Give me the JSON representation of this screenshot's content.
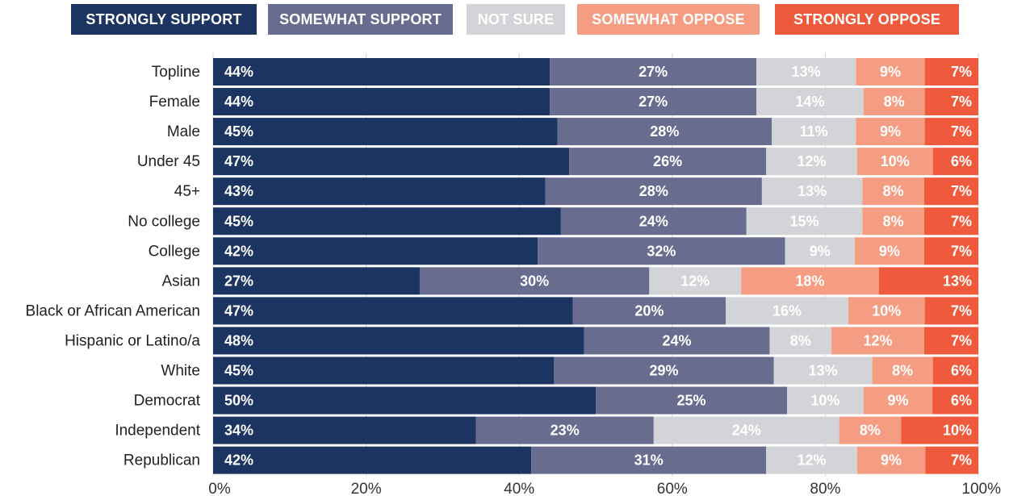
{
  "chart_data": {
    "type": "bar",
    "orientation": "horizontal",
    "stacked": true,
    "categories": [
      "Topline",
      "Female",
      "Male",
      "Under 45",
      "45+",
      "No college",
      "College",
      "Asian",
      "Black or African American",
      "Hispanic or Latino/a",
      "White",
      "Democrat",
      "Independent",
      "Republican"
    ],
    "series": [
      {
        "name": "STRONGLY SUPPORT",
        "color": "#1b3461",
        "values": [
          44,
          44,
          45,
          47,
          43,
          45,
          42,
          27,
          47,
          48,
          45,
          50,
          34,
          42
        ]
      },
      {
        "name": "SOMEWHAT SUPPORT",
        "color": "#686c8e",
        "values": [
          27,
          27,
          28,
          26,
          28,
          24,
          32,
          30,
          20,
          24,
          29,
          25,
          23,
          31
        ]
      },
      {
        "name": "NOT SURE",
        "color": "#d3d4d7",
        "values": [
          13,
          14,
          11,
          12,
          13,
          15,
          9,
          12,
          16,
          8,
          13,
          10,
          24,
          12
        ]
      },
      {
        "name": "SOMEWHAT OPPOSE",
        "color": "#f59d82",
        "values": [
          9,
          8,
          9,
          10,
          8,
          8,
          9,
          18,
          10,
          12,
          8,
          9,
          8,
          9
        ]
      },
      {
        "name": "STRONGLY OPPOSE",
        "color": "#f05a3c",
        "values": [
          7,
          7,
          7,
          6,
          7,
          7,
          7,
          13,
          7,
          7,
          6,
          6,
          10,
          7
        ]
      }
    ],
    "xlim": [
      0,
      100
    ],
    "xticks": [
      "0%",
      "20%",
      "40%",
      "60%",
      "80%",
      "100%"
    ],
    "value_suffix": "%",
    "grid": true,
    "legend_position": "top"
  }
}
